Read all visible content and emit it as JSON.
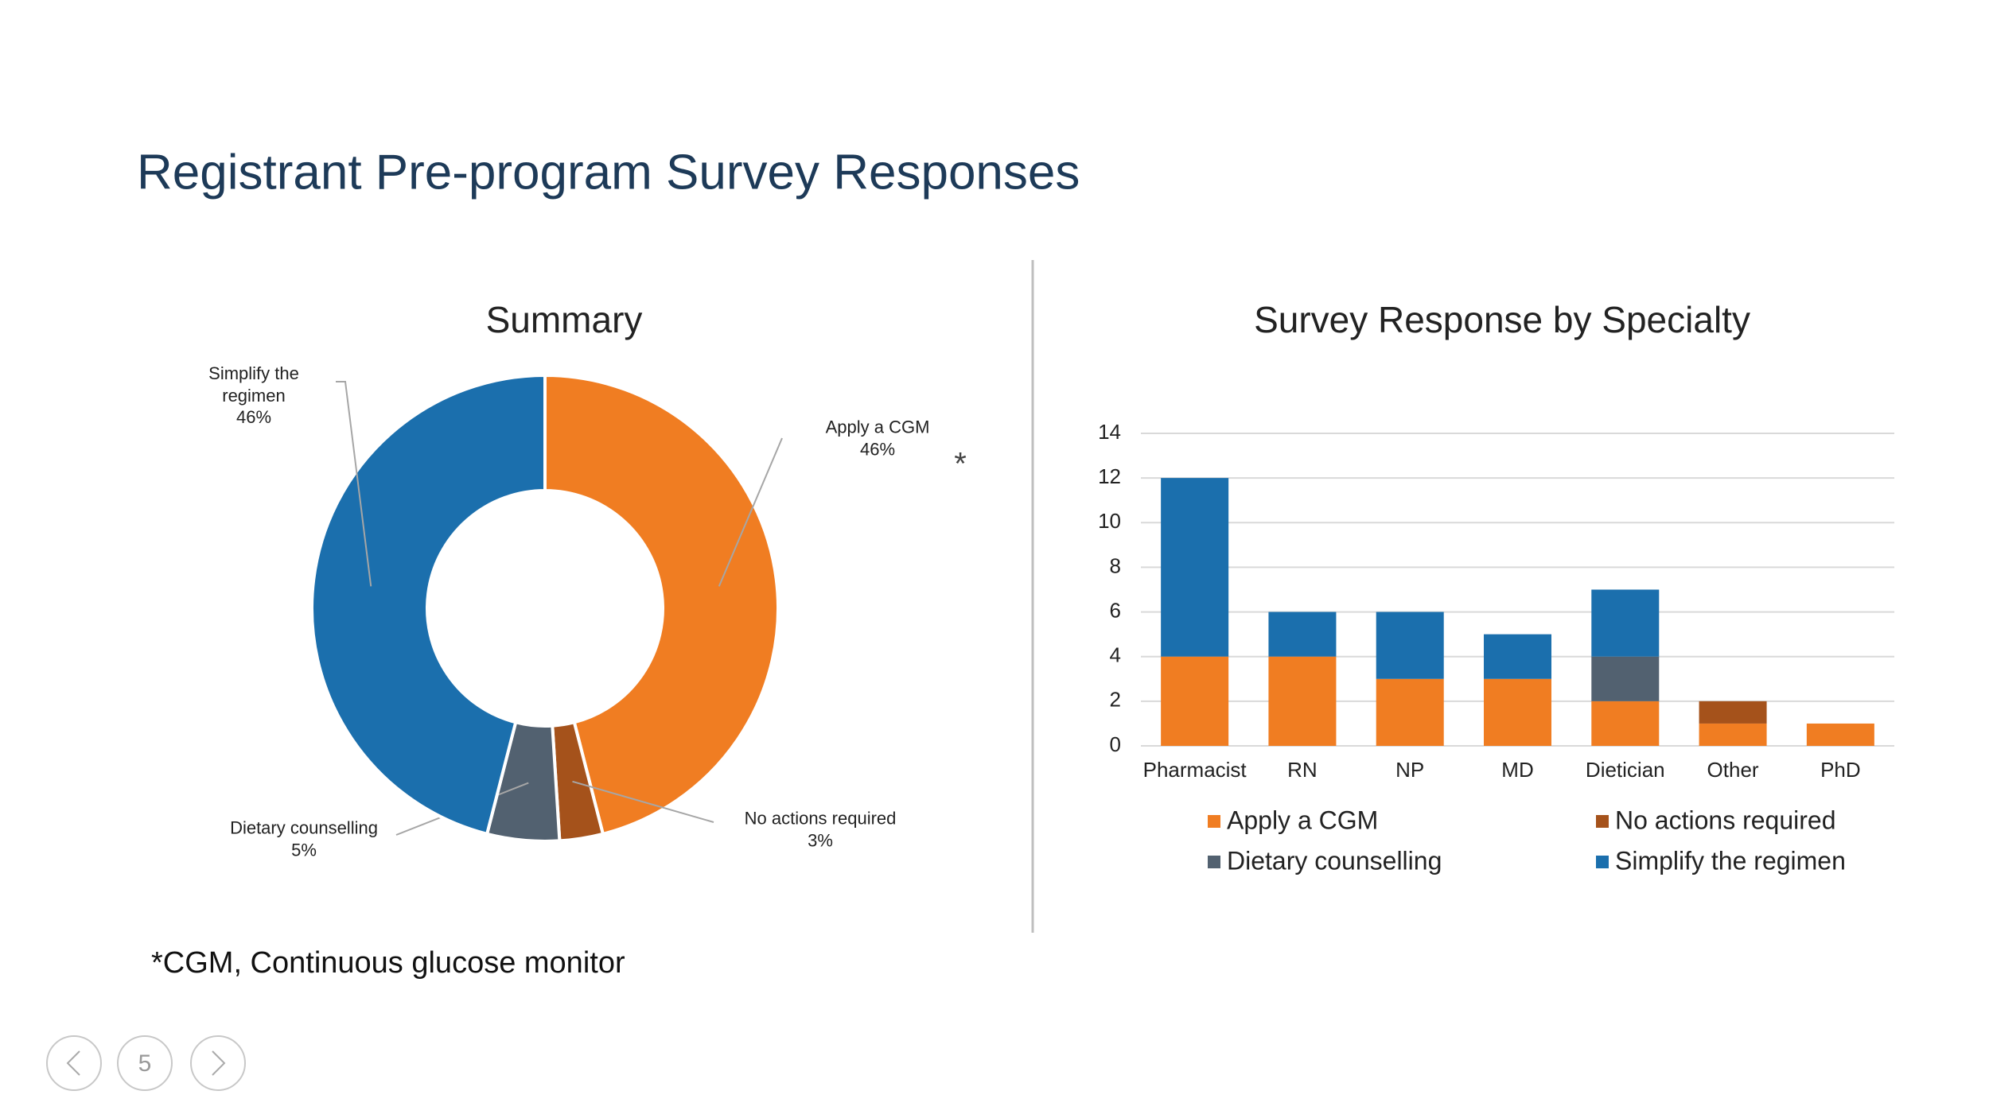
{
  "title": "Registrant Pre-program Survey Responses",
  "footnote": "*CGM, Continuous glucose monitor",
  "page_number": "5",
  "chart_data": [
    {
      "type": "pie",
      "title": "Summary",
      "annotation": "*",
      "categories": [
        "Apply a CGM",
        "No actions required",
        "Dietary counselling",
        "Simplify the regimen"
      ],
      "values": [
        46,
        3,
        5,
        46
      ],
      "value_labels": [
        "46%",
        "3%",
        "5%",
        "46%"
      ],
      "colors": [
        "#f07d22",
        "#a5521b",
        "#526170",
        "#1b6fad"
      ]
    },
    {
      "type": "bar",
      "stacked": true,
      "title": "Survey Response by Specialty",
      "categories": [
        "Pharmacist",
        "RN",
        "NP",
        "MD",
        "Dietician",
        "Other",
        "PhD"
      ],
      "series": [
        {
          "name": "Apply a CGM",
          "color": "#f07d22",
          "values": [
            4,
            4,
            3,
            3,
            2,
            1,
            1
          ]
        },
        {
          "name": "No actions required",
          "color": "#a5521b",
          "values": [
            0,
            0,
            0,
            0,
            0,
            1,
            0
          ]
        },
        {
          "name": "Dietary counselling",
          "color": "#526170",
          "values": [
            0,
            0,
            0,
            0,
            2,
            0,
            0
          ]
        },
        {
          "name": "Simplify the regimen",
          "color": "#1b6fad",
          "values": [
            8,
            2,
            3,
            2,
            3,
            0,
            0
          ]
        }
      ],
      "ylim": [
        0,
        14
      ],
      "yticks": [
        0,
        2,
        4,
        6,
        8,
        10,
        12,
        14
      ],
      "grid": true
    }
  ]
}
